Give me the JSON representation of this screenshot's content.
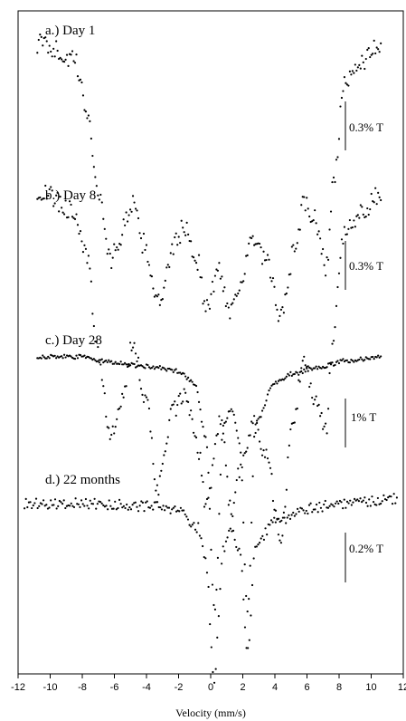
{
  "chart_data": {
    "type": "scatter",
    "xlabel": "Velocity (mm/s)",
    "xlim": [
      -12,
      12
    ],
    "xticks": [
      -12,
      -10,
      -8,
      -6,
      -4,
      -2,
      0,
      2,
      4,
      6,
      8,
      10,
      12
    ],
    "grid": false,
    "panels": [
      {
        "label": "a.)  Day 1",
        "scale_label": "0.3% T",
        "baseline_percent_T": 100,
        "key_points": [
          {
            "x": -10.5,
            "y": 100.0
          },
          {
            "x": -8.5,
            "y": 99.95
          },
          {
            "x": -7.7,
            "y": 99.8
          },
          {
            "x": -7.0,
            "y": 99.55
          },
          {
            "x": -6.2,
            "y": 99.35
          },
          {
            "x": -5.8,
            "y": 99.4
          },
          {
            "x": -4.9,
            "y": 99.52
          },
          {
            "x": -4.2,
            "y": 99.4
          },
          {
            "x": -3.2,
            "y": 99.22
          },
          {
            "x": -2.2,
            "y": 99.4
          },
          {
            "x": -1.7,
            "y": 99.45
          },
          {
            "x": -0.8,
            "y": 99.35
          },
          {
            "x": -0.3,
            "y": 99.2
          },
          {
            "x": 0.5,
            "y": 99.32
          },
          {
            "x": 1.2,
            "y": 99.2
          },
          {
            "x": 1.9,
            "y": 99.29
          },
          {
            "x": 2.6,
            "y": 99.41
          },
          {
            "x": 3.4,
            "y": 99.35
          },
          {
            "x": 4.4,
            "y": 99.18
          },
          {
            "x": 5.3,
            "y": 99.4
          },
          {
            "x": 5.8,
            "y": 99.52
          },
          {
            "x": 6.5,
            "y": 99.47
          },
          {
            "x": 7.2,
            "y": 99.33
          },
          {
            "x": 7.7,
            "y": 99.6
          },
          {
            "x": 8.3,
            "y": 99.87
          },
          {
            "x": 9.5,
            "y": 99.95
          },
          {
            "x": 10.5,
            "y": 100.0
          }
        ]
      },
      {
        "label": "b.)  Day 8",
        "scale_label": "0.3% T",
        "baseline_percent_T": 100,
        "key_points": [
          {
            "x": -10.5,
            "y": 100.0
          },
          {
            "x": -8.5,
            "y": 99.95
          },
          {
            "x": -7.7,
            "y": 99.8
          },
          {
            "x": -7.0,
            "y": 99.5
          },
          {
            "x": -6.2,
            "y": 99.25
          },
          {
            "x": -5.6,
            "y": 99.35
          },
          {
            "x": -4.8,
            "y": 99.55
          },
          {
            "x": -4.0,
            "y": 99.35
          },
          {
            "x": -3.3,
            "y": 99.1
          },
          {
            "x": -2.3,
            "y": 99.34
          },
          {
            "x": -1.6,
            "y": 99.38
          },
          {
            "x": -0.8,
            "y": 99.22
          },
          {
            "x": -0.3,
            "y": 99.05
          },
          {
            "x": 0.6,
            "y": 99.3
          },
          {
            "x": 1.3,
            "y": 99.03
          },
          {
            "x": 2.0,
            "y": 99.19
          },
          {
            "x": 2.7,
            "y": 99.3
          },
          {
            "x": 3.4,
            "y": 99.21
          },
          {
            "x": 4.4,
            "y": 98.95
          },
          {
            "x": 5.1,
            "y": 99.3
          },
          {
            "x": 5.8,
            "y": 99.48
          },
          {
            "x": 6.5,
            "y": 99.37
          },
          {
            "x": 7.2,
            "y": 99.27
          },
          {
            "x": 7.6,
            "y": 99.55
          },
          {
            "x": 8.3,
            "y": 99.88
          },
          {
            "x": 9.5,
            "y": 99.95
          },
          {
            "x": 10.5,
            "y": 100.0
          }
        ]
      },
      {
        "label": "c.)  Day 28",
        "scale_label": "1% T",
        "baseline_percent_T": 100,
        "key_points": [
          {
            "x": -10.5,
            "y": 100.0
          },
          {
            "x": -8.0,
            "y": 100.0
          },
          {
            "x": -6.5,
            "y": 99.95
          },
          {
            "x": -4.0,
            "y": 99.9
          },
          {
            "x": -2.0,
            "y": 99.85
          },
          {
            "x": -1.0,
            "y": 99.72
          },
          {
            "x": -0.3,
            "y": 99.15
          },
          {
            "x": 0.25,
            "y": 97.3
          },
          {
            "x": 0.8,
            "y": 99.28
          },
          {
            "x": 1.3,
            "y": 99.45
          },
          {
            "x": 1.8,
            "y": 99.1
          },
          {
            "x": 2.3,
            "y": 97.3
          },
          {
            "x": 2.8,
            "y": 99.3
          },
          {
            "x": 4.0,
            "y": 99.72
          },
          {
            "x": 5.0,
            "y": 99.82
          },
          {
            "x": 7.0,
            "y": 99.9
          },
          {
            "x": 8.5,
            "y": 99.96
          },
          {
            "x": 10.5,
            "y": 100.0
          }
        ]
      },
      {
        "label": "d.)  22 months",
        "scale_label": "0.2% T",
        "baseline_percent_T": 100,
        "key_points": [
          {
            "x": -11.5,
            "y": 100.0
          },
          {
            "x": -8.0,
            "y": 100.0
          },
          {
            "x": -4.0,
            "y": 99.99
          },
          {
            "x": -2.0,
            "y": 99.97
          },
          {
            "x": -0.8,
            "y": 99.9
          },
          {
            "x": -0.3,
            "y": 99.76
          },
          {
            "x": 0.2,
            "y": 99.27
          },
          {
            "x": 0.8,
            "y": 99.82
          },
          {
            "x": 1.3,
            "y": 99.9
          },
          {
            "x": 1.8,
            "y": 99.8
          },
          {
            "x": 2.3,
            "y": 99.38
          },
          {
            "x": 2.8,
            "y": 99.83
          },
          {
            "x": 4.0,
            "y": 99.92
          },
          {
            "x": 6.0,
            "y": 99.98
          },
          {
            "x": 8.0,
            "y": 100.0
          },
          {
            "x": 11.5,
            "y": 100.02
          }
        ]
      }
    ]
  }
}
